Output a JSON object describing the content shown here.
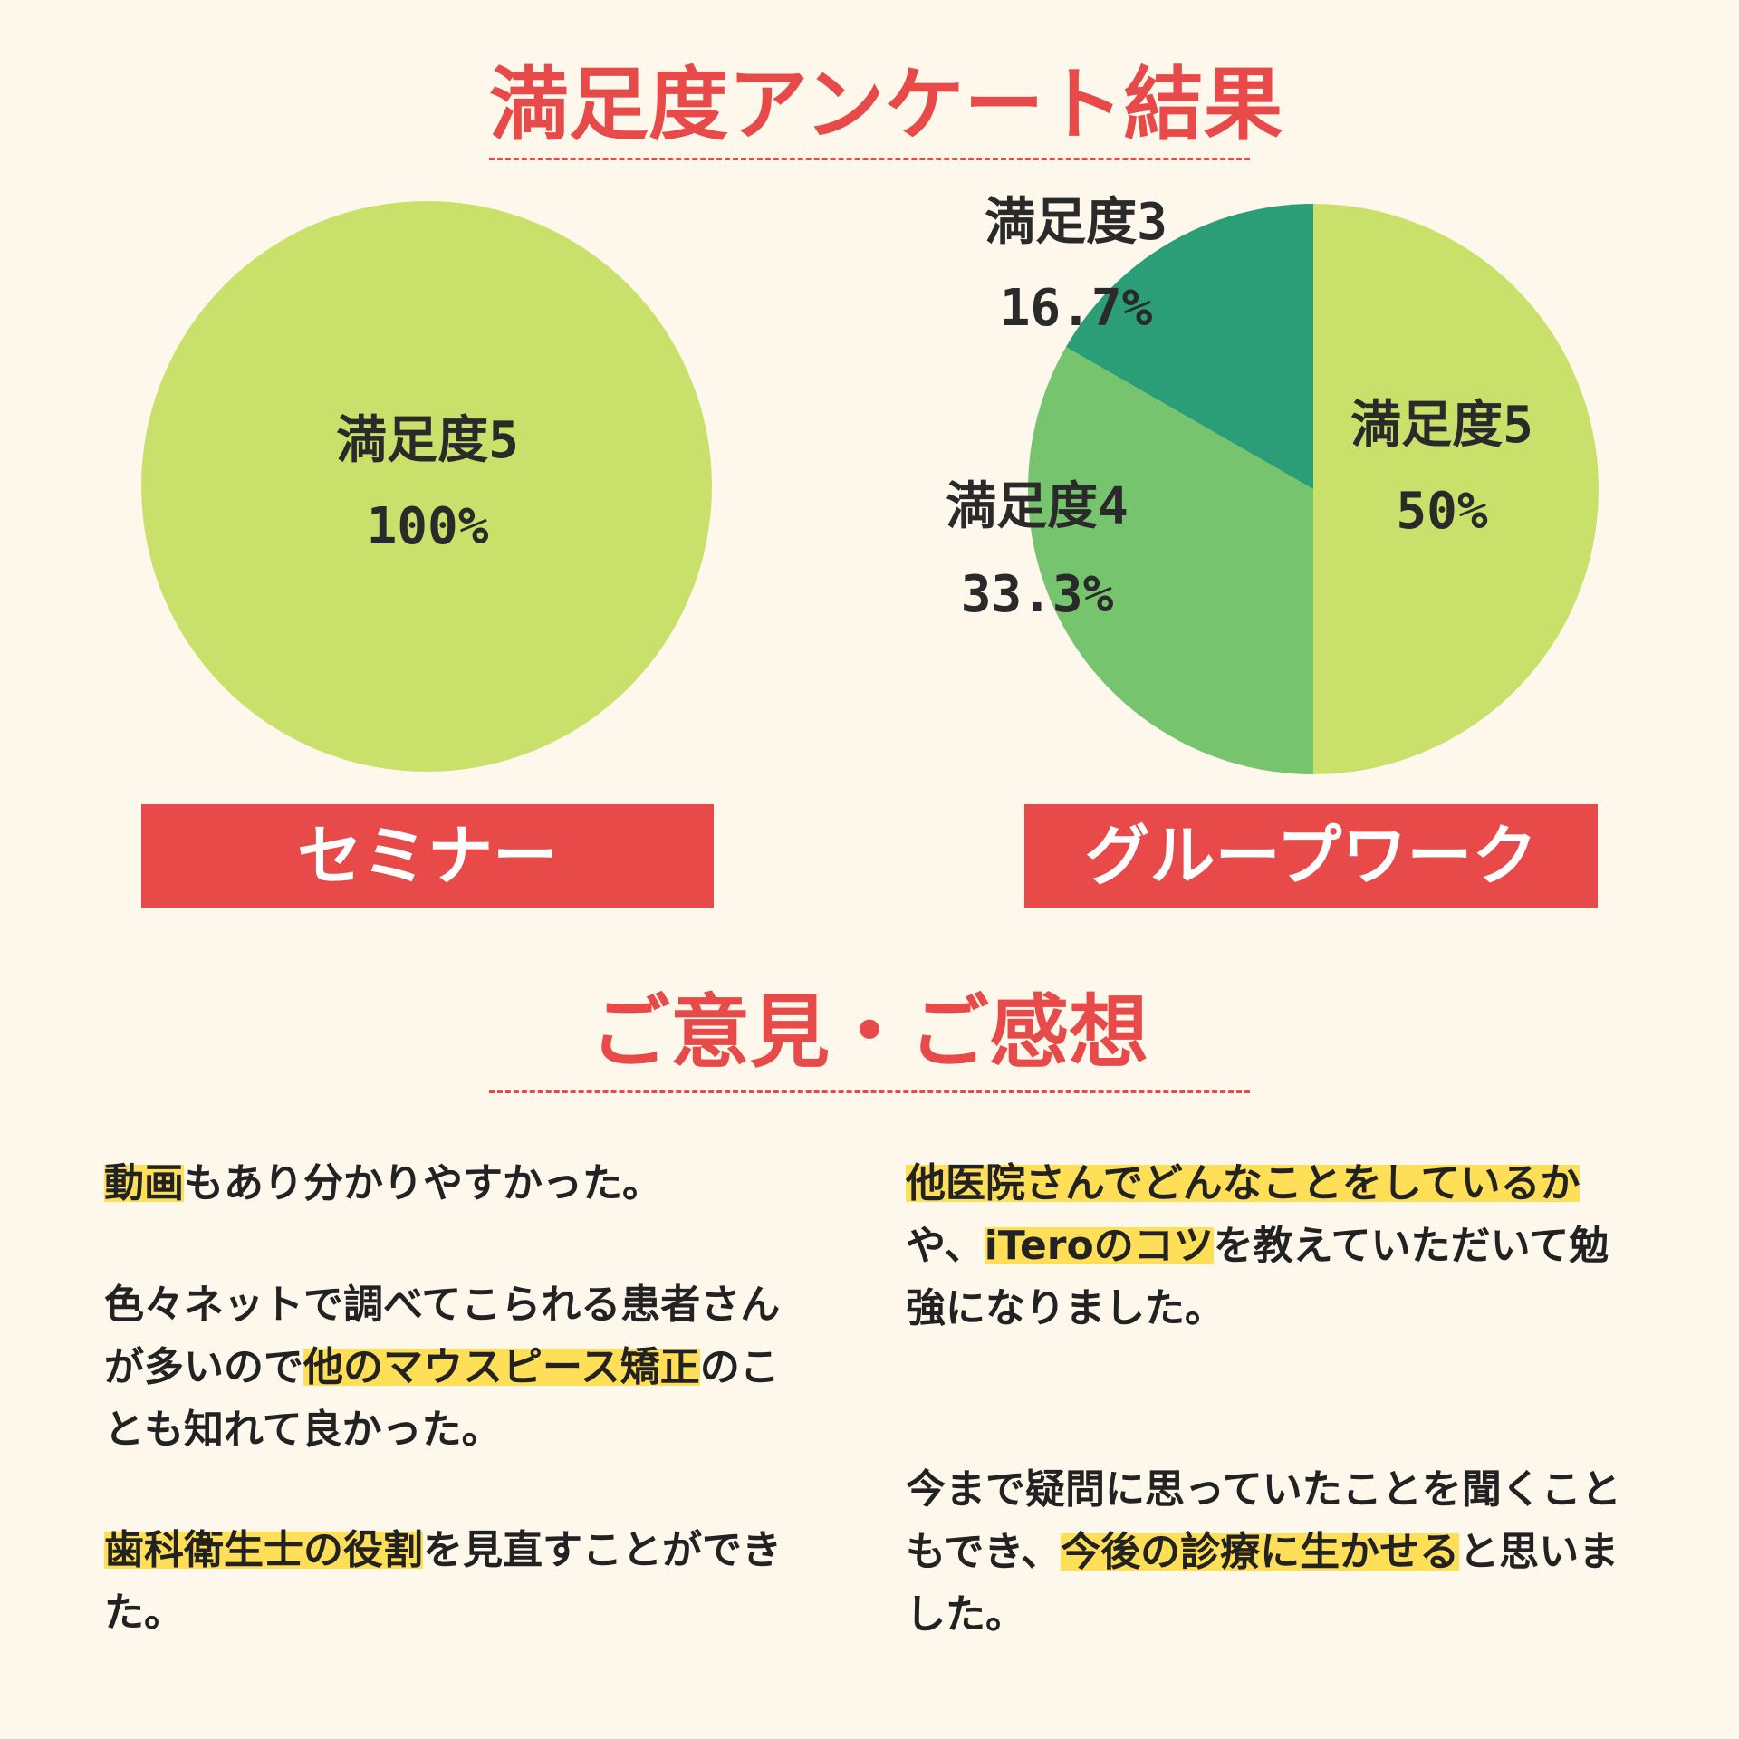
{
  "page": {
    "title": "満足度アンケート結果",
    "comments_title": "ご意見・ご感想",
    "colors": {
      "accent": "#e84a49",
      "background": "#fdf7ec",
      "highlight": "#ffdf57"
    }
  },
  "chart_data": [
    {
      "type": "pie",
      "name": "セミナー",
      "slices": [
        {
          "label": "満足度5",
          "value": 100,
          "value_label": "100%",
          "color": "#c9e16a"
        }
      ]
    },
    {
      "type": "pie",
      "name": "グループワーク",
      "slices": [
        {
          "label": "満足度5",
          "value": 50,
          "value_label": "50%",
          "color": "#c9e16a"
        },
        {
          "label": "満足度4",
          "value": 33.3,
          "value_label": "33.3%",
          "color": "#77c46e"
        },
        {
          "label": "満足度3",
          "value": 16.7,
          "value_label": "16.7%",
          "color": "#2b9e78"
        }
      ]
    }
  ],
  "comments": [
    {
      "parts": [
        {
          "text": "動画",
          "hl": true
        },
        {
          "text": "もあり分かりやすかった。",
          "hl": false
        }
      ]
    },
    {
      "parts": [
        {
          "text": "色々ネットで調べてこられる患者さんが多いので",
          "hl": false
        },
        {
          "text": "他のマウスピース矯正",
          "hl": true
        },
        {
          "text": "のことも知れて良かった。",
          "hl": false
        }
      ]
    },
    {
      "parts": [
        {
          "text": "歯科衛生士の役割",
          "hl": true
        },
        {
          "text": "を見直すことができた。",
          "hl": false
        }
      ]
    },
    {
      "parts": [
        {
          "text": "他医院さんでどんなことをしているか",
          "hl": true
        },
        {
          "text": "や、",
          "hl": false
        },
        {
          "text": "iTeroのコツ",
          "hl": true
        },
        {
          "text": "を教えていただいて勉強になりました。",
          "hl": false
        }
      ]
    },
    {
      "parts": [
        {
          "text": "今まで疑問に思っていたことを聞くこともでき、",
          "hl": false
        },
        {
          "text": "今後の診療に生かせる",
          "hl": true
        },
        {
          "text": "と思いました。",
          "hl": false
        }
      ]
    }
  ]
}
